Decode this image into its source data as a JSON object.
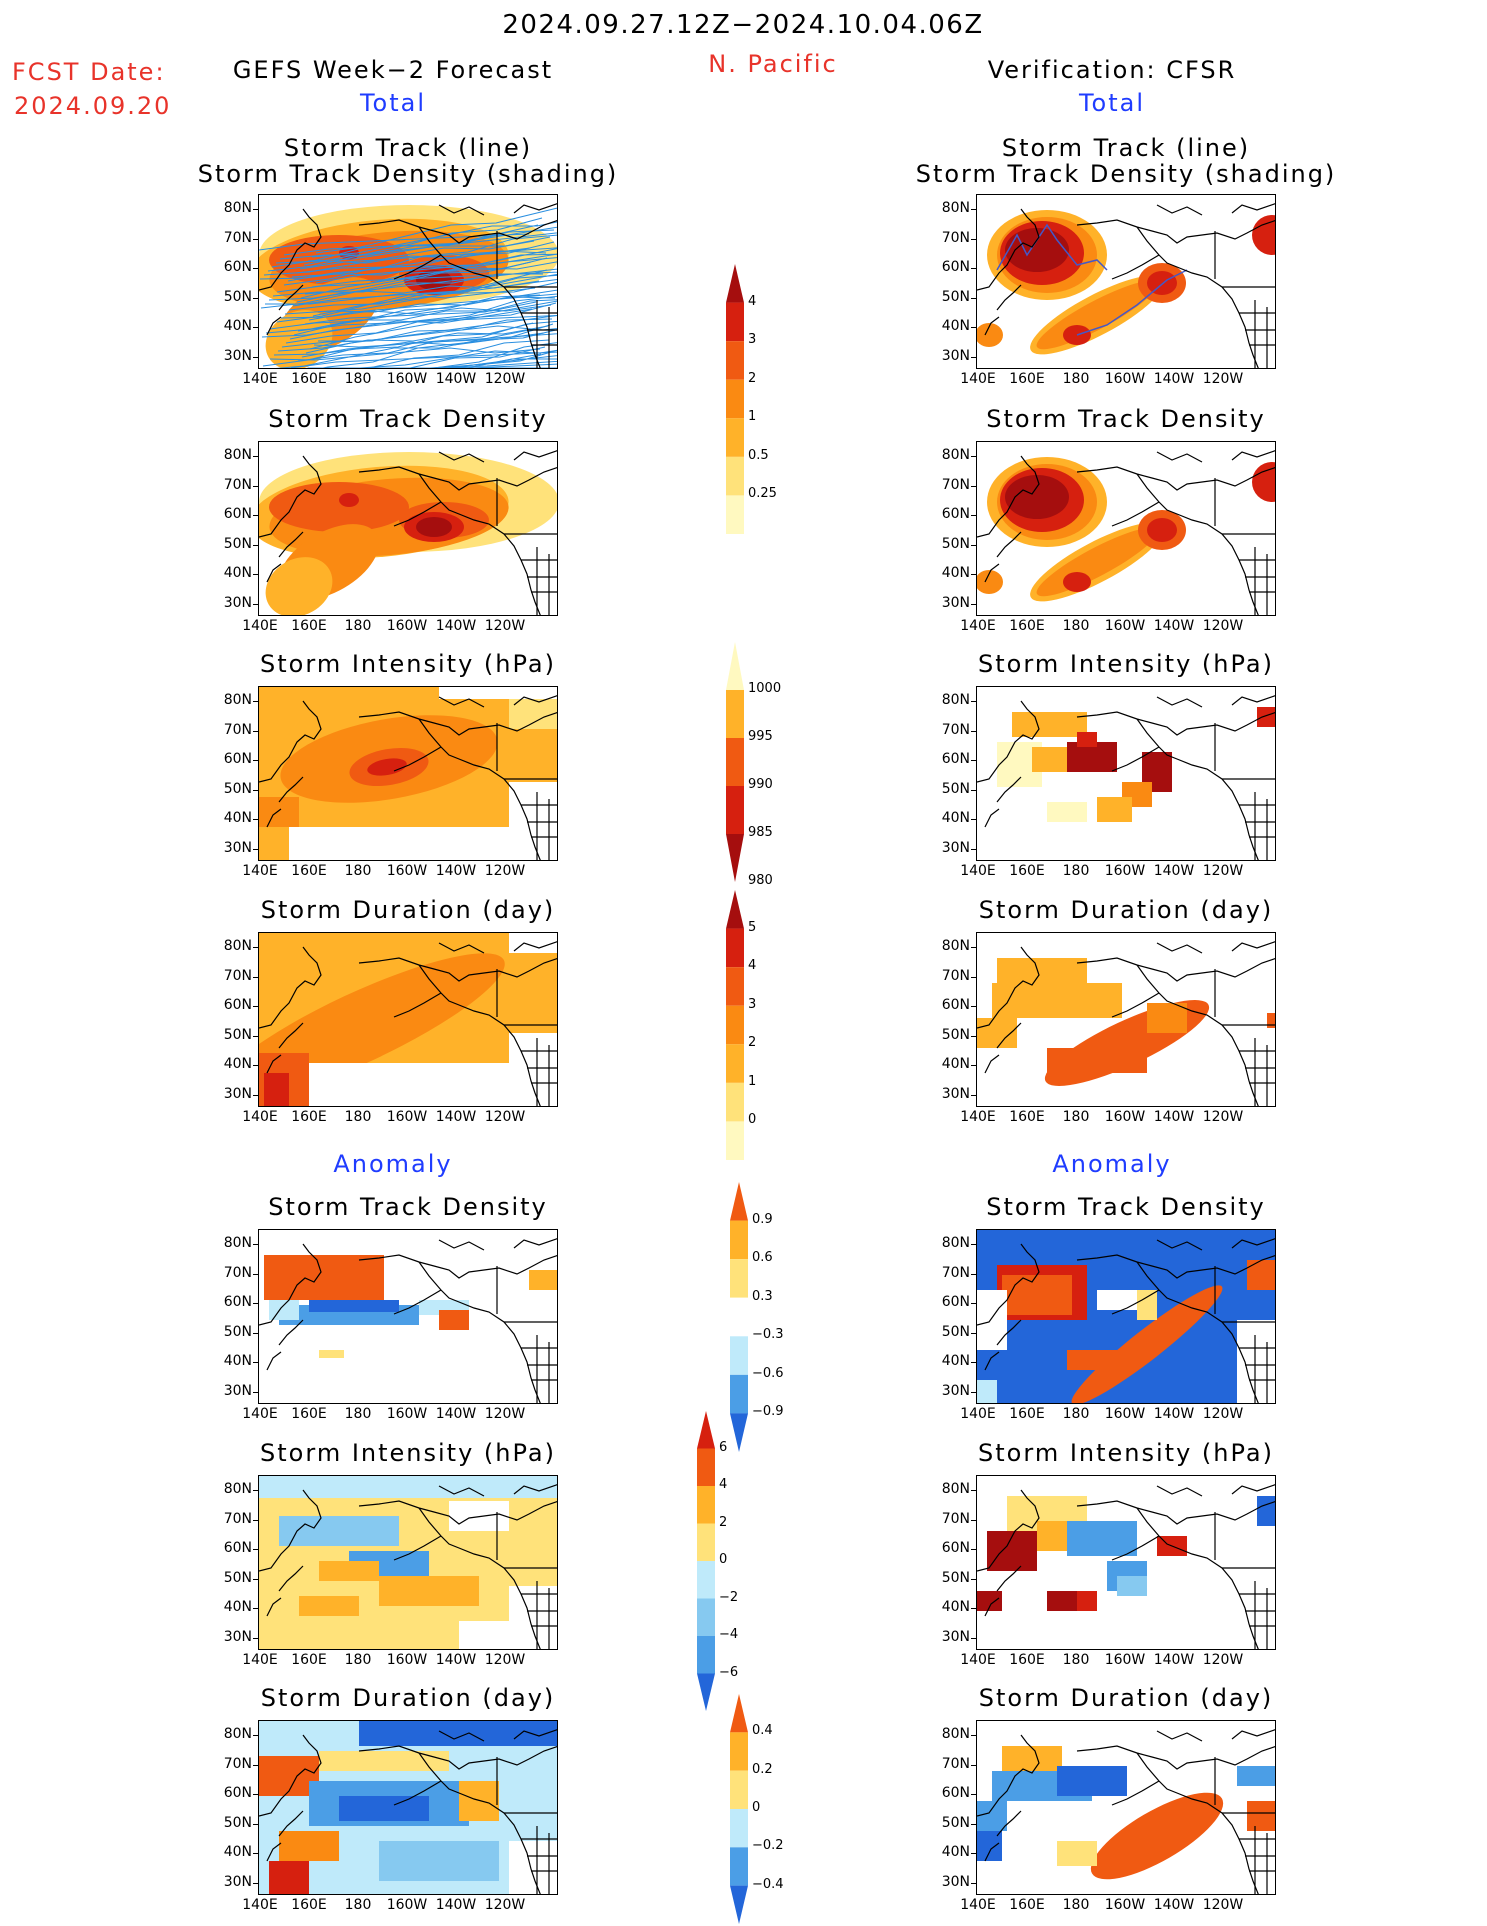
{
  "header": {
    "period": "2024.09.27.12Z−2024.10.04.06Z",
    "fcst_label": "FCST Date:",
    "fcst_date": "2024.09.20",
    "left_title": "GEFS Week−2 Forecast",
    "region": "N. Pacific",
    "right_title": "Verification: CFSR",
    "left_total": "Total",
    "right_total": "Total",
    "left_anomaly": "Anomaly",
    "right_anomaly": "Anomaly"
  },
  "axes": {
    "y_ticks": [
      "80N",
      "70N",
      "60N",
      "50N",
      "40N",
      "30N"
    ],
    "x_ticks": [
      "140E",
      "160E",
      "180",
      "160W",
      "140W",
      "120W"
    ]
  },
  "colors": {
    "c0": "#fff9c0",
    "c1": "#ffe27a",
    "c2": "#ffb229",
    "c3": "#fa8a12",
    "c4": "#f05a12",
    "c5": "#d6200f",
    "c6": "#a50e0e",
    "b1": "#bfeafa",
    "b2": "#86c9f0",
    "b3": "#4b9ee6",
    "b4": "#2366d9",
    "b5": "#1440b8",
    "track": "#2a8fe0",
    "track_dark": "#4458c8"
  },
  "panels": [
    {
      "id": "gefs-total-track",
      "title": "Storm Track (line)",
      "title2": "Storm Track Density (shading)"
    },
    {
      "id": "gefs-total-density",
      "title": "Storm Track Density"
    },
    {
      "id": "gefs-total-intensity",
      "title": "Storm Intensity (hPa)"
    },
    {
      "id": "gefs-total-duration",
      "title": "Storm Duration (day)"
    },
    {
      "id": "gefs-anom-density",
      "title": "Storm Track Density"
    },
    {
      "id": "gefs-anom-intensity",
      "title": "Storm Intensity (hPa)"
    },
    {
      "id": "gefs-anom-duration",
      "title": "Storm Duration (day)"
    },
    {
      "id": "cfsr-total-track",
      "title": "Storm Track (line)",
      "title2": "Storm Track Density (shading)"
    },
    {
      "id": "cfsr-total-density",
      "title": "Storm Track Density"
    },
    {
      "id": "cfsr-total-intensity",
      "title": "Storm Intensity (hPa)"
    },
    {
      "id": "cfsr-total-duration",
      "title": "Storm Duration (day)"
    },
    {
      "id": "cfsr-anom-density",
      "title": "Storm Track Density"
    },
    {
      "id": "cfsr-anom-intensity",
      "title": "Storm Intensity (hPa)"
    },
    {
      "id": "cfsr-anom-duration",
      "title": "Storm Duration (day)"
    }
  ],
  "colorbars": [
    {
      "id": "cb-density",
      "labels": [
        "4",
        "3",
        "2",
        "1",
        "0.5",
        "0.25"
      ],
      "colors": [
        "c6",
        "c5",
        "c4",
        "c3",
        "c2",
        "c1",
        "c0"
      ]
    },
    {
      "id": "cb-intensity",
      "labels": [
        "1000",
        "995",
        "990",
        "985",
        "980"
      ],
      "colors": [
        "c0",
        "c2",
        "c4",
        "c5",
        "c6"
      ]
    },
    {
      "id": "cb-duration",
      "labels": [
        "5",
        "4",
        "3",
        "2",
        "1",
        "0"
      ],
      "colors": [
        "c6",
        "c5",
        "c4",
        "c3",
        "c2",
        "c1",
        "c0"
      ]
    },
    {
      "id": "cb-anom-density",
      "labels": [
        "0.9",
        "0.6",
        "0.3",
        "−0.3",
        "−0.6",
        "−0.9"
      ],
      "colors": [
        "c4",
        "c2",
        "c1",
        "w",
        "b1",
        "b3",
        "b4"
      ]
    },
    {
      "id": "cb-anom-intensity",
      "labels": [
        "6",
        "4",
        "2",
        "0",
        "−2",
        "−4",
        "−6"
      ],
      "colors": [
        "c5",
        "c4",
        "c2",
        "c1",
        "b1",
        "b2",
        "b3",
        "b4"
      ]
    },
    {
      "id": "cb-anom-duration",
      "labels": [
        "0.4",
        "0.2",
        "0",
        "−0.2",
        "−0.4"
      ],
      "colors": [
        "c4",
        "c2",
        "c1",
        "b1",
        "b3",
        "b4"
      ]
    }
  ]
}
